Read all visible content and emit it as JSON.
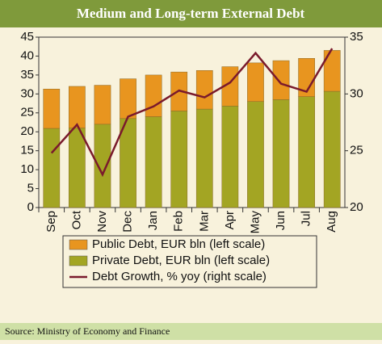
{
  "chart_data": {
    "type": "bar",
    "stacked": true,
    "title": "Medium and Long-term External Debt",
    "source": "Source: Ministry of Economy and Finance",
    "categories": [
      "Sep",
      "Oct",
      "Nov",
      "Dec",
      "Jan",
      "Feb",
      "Mar",
      "Apr",
      "May",
      "Jun",
      "Jul",
      "Aug"
    ],
    "series": [
      {
        "name": "Private Debt, EUR bln  (left scale)",
        "type": "bar",
        "color": "#a3a523",
        "values": [
          20.9,
          21.0,
          22.0,
          23.5,
          24.0,
          25.5,
          26.0,
          26.8,
          28.0,
          28.5,
          29.3,
          30.7
        ]
      },
      {
        "name": "Public Debt, EUR bln  (left scale)",
        "type": "bar",
        "color": "#e8951f",
        "values": [
          10.4,
          11.0,
          10.3,
          10.5,
          11.0,
          10.3,
          10.2,
          10.4,
          10.2,
          10.3,
          10.1,
          10.8
        ]
      },
      {
        "name": "Debt Growth, % yoy (right scale)",
        "type": "line",
        "axis": "y2",
        "color": "#7a1a2c",
        "values": [
          24.8,
          27.3,
          22.9,
          28.0,
          28.9,
          30.3,
          29.7,
          31.0,
          33.6,
          30.9,
          30.2,
          34.0
        ]
      }
    ],
    "legend_order": [
      1,
      0,
      2
    ],
    "ylim": [
      0,
      45
    ],
    "yticks": [
      0,
      5,
      10,
      15,
      20,
      25,
      30,
      35,
      40,
      45
    ],
    "y2lim": [
      20,
      35
    ],
    "y2ticks": [
      20,
      25,
      30,
      35
    ]
  }
}
